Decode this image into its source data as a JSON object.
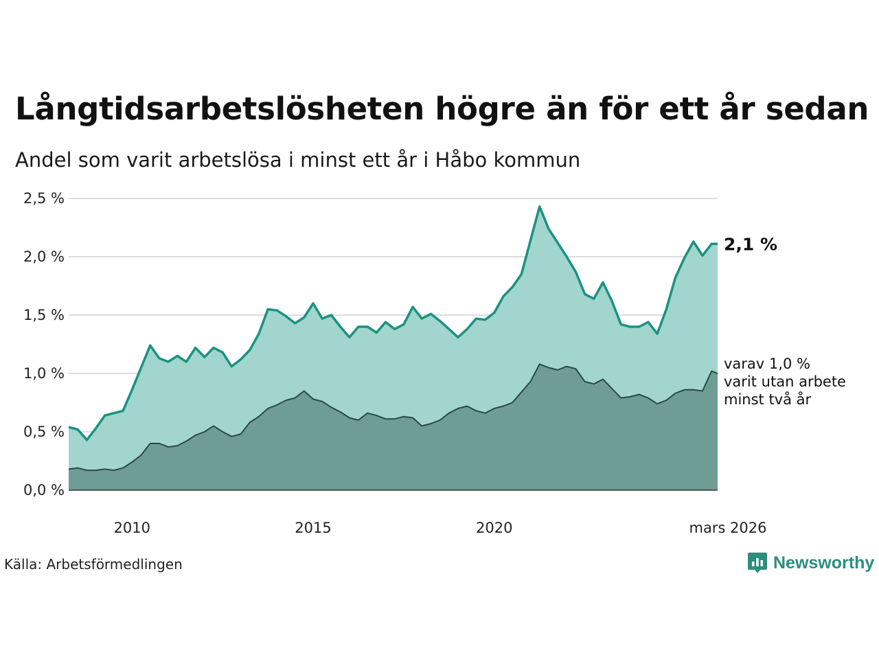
{
  "header": {
    "title": "Långtidsarbetslösheten högre än för ett år sedan",
    "subtitle": "Andel som varit arbetslösa i minst ett år i Håbo kommun"
  },
  "footer": {
    "source": "Källa: Arbetsförmedlingen",
    "brand": "Newsworthy",
    "brand_icon": "newsworthy-logo-icon"
  },
  "colors": {
    "main_line": "#1a9281",
    "main_fill": "#a2d5cd",
    "sub_line": "#2a4a44",
    "sub_fill": "#6f9d96",
    "grid": "#dddddd",
    "brand": "#2a8f7d"
  },
  "chart_data": {
    "type": "area",
    "title": "Långtidsarbetslösheten högre än för ett år sedan",
    "subtitle": "Andel som varit arbetslösa i minst ett år i Håbo kommun",
    "xlabel": "",
    "ylabel": "",
    "x_range": [
      2008.25,
      2026.167
    ],
    "ylim": [
      0,
      2.5
    ],
    "grid": true,
    "y_ticks": [
      0,
      0.5,
      1.0,
      1.5,
      2.0,
      2.5
    ],
    "y_tick_labels": [
      "0,0 %",
      "0,5 %",
      "1,0 %",
      "1,5 %",
      "2,0 %",
      "2,5 %"
    ],
    "x_ticks": [
      2010,
      2015,
      2020,
      2026.167
    ],
    "x_tick_labels": [
      "2010",
      "2015",
      "2020",
      "mars 2026"
    ],
    "end_label": "2,1 %",
    "sub_label_lines": [
      "varav 1,0 %",
      "varit utan arbete",
      "minst två år"
    ],
    "series": [
      {
        "name": "Arbetslösa minst ett år",
        "x": [
          2008.25,
          2008.5,
          2008.75,
          2009.0,
          2009.25,
          2009.5,
          2009.75,
          2010.0,
          2010.25,
          2010.5,
          2010.75,
          2011.0,
          2011.25,
          2011.5,
          2011.75,
          2012.0,
          2012.25,
          2012.5,
          2012.75,
          2013.0,
          2013.25,
          2013.5,
          2013.75,
          2014.0,
          2014.25,
          2014.5,
          2014.75,
          2015.0,
          2015.25,
          2015.5,
          2015.75,
          2016.0,
          2016.25,
          2016.5,
          2016.75,
          2017.0,
          2017.25,
          2017.5,
          2017.75,
          2018.0,
          2018.25,
          2018.5,
          2018.75,
          2019.0,
          2019.25,
          2019.5,
          2019.75,
          2020.0,
          2020.25,
          2020.5,
          2020.75,
          2021.0,
          2021.25,
          2021.5,
          2021.75,
          2022.0,
          2022.25,
          2022.5,
          2022.75,
          2023.0,
          2023.25,
          2023.5,
          2023.75,
          2024.0,
          2024.25,
          2024.5,
          2024.75,
          2025.0,
          2025.25,
          2025.5,
          2025.75,
          2026.0,
          2026.167
        ],
        "values": [
          0.54,
          0.52,
          0.43,
          0.53,
          0.64,
          0.66,
          0.68,
          0.86,
          1.05,
          1.24,
          1.13,
          1.1,
          1.15,
          1.1,
          1.22,
          1.14,
          1.22,
          1.18,
          1.06,
          1.12,
          1.2,
          1.34,
          1.55,
          1.54,
          1.49,
          1.43,
          1.48,
          1.6,
          1.47,
          1.5,
          1.4,
          1.31,
          1.4,
          1.4,
          1.35,
          1.44,
          1.38,
          1.42,
          1.57,
          1.47,
          1.51,
          1.45,
          1.38,
          1.31,
          1.38,
          1.47,
          1.46,
          1.52,
          1.66,
          1.74,
          1.85,
          2.14,
          2.43,
          2.24,
          2.12,
          2.0,
          1.87,
          1.68,
          1.64,
          1.78,
          1.62,
          1.42,
          1.4,
          1.4,
          1.44,
          1.34,
          1.55,
          1.82,
          1.99,
          2.13,
          2.01,
          2.11,
          2.11
        ]
      },
      {
        "name": "varav minst två år",
        "x": [
          2008.25,
          2008.5,
          2008.75,
          2009.0,
          2009.25,
          2009.5,
          2009.75,
          2010.0,
          2010.25,
          2010.5,
          2010.75,
          2011.0,
          2011.25,
          2011.5,
          2011.75,
          2012.0,
          2012.25,
          2012.5,
          2012.75,
          2013.0,
          2013.25,
          2013.5,
          2013.75,
          2014.0,
          2014.25,
          2014.5,
          2014.75,
          2015.0,
          2015.25,
          2015.5,
          2015.75,
          2016.0,
          2016.25,
          2016.5,
          2016.75,
          2017.0,
          2017.25,
          2017.5,
          2017.75,
          2018.0,
          2018.25,
          2018.5,
          2018.75,
          2019.0,
          2019.25,
          2019.5,
          2019.75,
          2020.0,
          2020.25,
          2020.5,
          2020.75,
          2021.0,
          2021.25,
          2021.5,
          2021.75,
          2022.0,
          2022.25,
          2022.5,
          2022.75,
          2023.0,
          2023.25,
          2023.5,
          2023.75,
          2024.0,
          2024.25,
          2024.5,
          2024.75,
          2025.0,
          2025.25,
          2025.5,
          2025.75,
          2026.0,
          2026.167
        ],
        "values": [
          0.18,
          0.19,
          0.17,
          0.17,
          0.18,
          0.17,
          0.19,
          0.24,
          0.3,
          0.4,
          0.4,
          0.37,
          0.38,
          0.42,
          0.47,
          0.5,
          0.55,
          0.5,
          0.46,
          0.48,
          0.58,
          0.63,
          0.7,
          0.73,
          0.77,
          0.79,
          0.85,
          0.78,
          0.76,
          0.71,
          0.67,
          0.62,
          0.6,
          0.66,
          0.64,
          0.61,
          0.61,
          0.63,
          0.62,
          0.55,
          0.57,
          0.6,
          0.66,
          0.7,
          0.72,
          0.68,
          0.66,
          0.7,
          0.72,
          0.75,
          0.84,
          0.93,
          1.08,
          1.05,
          1.03,
          1.06,
          1.04,
          0.93,
          0.91,
          0.95,
          0.87,
          0.79,
          0.8,
          0.82,
          0.79,
          0.74,
          0.77,
          0.83,
          0.86,
          0.86,
          0.85,
          1.02,
          1.0
        ]
      }
    ]
  }
}
